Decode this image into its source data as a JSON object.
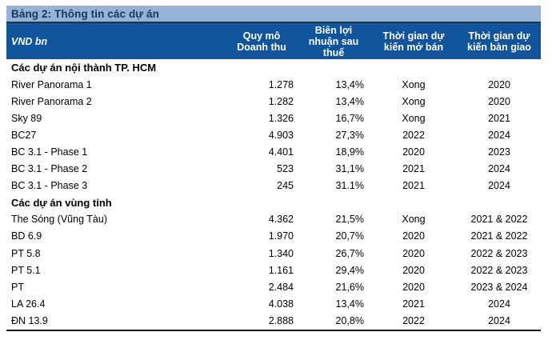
{
  "table": {
    "title": "Bảng 2: Thông tin các dự án",
    "unit_label": "VND bn",
    "columns": [
      "Quy mô\nDoanh thu",
      "Biên lợi\nnhuận sau\nthuế",
      "Thời gian dự\nkiến mở bán",
      "Thời gian dự\nkiến bàn giao"
    ],
    "sections": [
      {
        "header": "Các dự án nội thành TP. HCM",
        "rows": [
          {
            "name": "River Panorama 1",
            "revenue": "1.278",
            "margin": "13,4%",
            "open_date": "Xong",
            "handover": "2020"
          },
          {
            "name": "River Panorama 2",
            "revenue": "1.282",
            "margin": "13,4%",
            "open_date": "Xong",
            "handover": "2020"
          },
          {
            "name": "Sky 89",
            "revenue": "1.326",
            "margin": "16,7%",
            "open_date": "Xong",
            "handover": "2021"
          },
          {
            "name": "BC27",
            "revenue": "4.903",
            "margin": "27,3%",
            "open_date": "2022",
            "handover": "2024"
          },
          {
            "name": "BC 3.1 - Phase 1",
            "revenue": "4.401",
            "margin": "18,9%",
            "open_date": "2020",
            "handover": "2023"
          },
          {
            "name": "BC 3.1 - Phase 2",
            "revenue": "523",
            "margin": "31,1%",
            "open_date": "2021",
            "handover": "2024"
          },
          {
            "name": "BC 3.1 - Phase 3",
            "revenue": "245",
            "margin": "31.1%",
            "open_date": "2021",
            "handover": "2024"
          }
        ]
      },
      {
        "header": "Các dự án vùng tỉnh",
        "rows": [
          {
            "name": "The Sóng (Vũng Tàu)",
            "revenue": "4.362",
            "margin": "21,5%",
            "open_date": "Xong",
            "handover": "2021 & 2022"
          },
          {
            "name": "BD 6.9",
            "revenue": "1.970",
            "margin": "20,7%",
            "open_date": "2020",
            "handover": "2021 & 2022"
          },
          {
            "name": "PT 5.8",
            "revenue": "1.340",
            "margin": "26,7%",
            "open_date": "2020",
            "handover": "2022 & 2023"
          },
          {
            "name": "PT 5.1",
            "revenue": "1.161",
            "margin": "29,4%",
            "open_date": "2020",
            "handover": "2022 & 2023"
          },
          {
            "name": "PT",
            "revenue": "2.484",
            "margin": "21,6%",
            "open_date": "2020",
            "handover": "2023 & 2024"
          },
          {
            "name": "LA 26.4",
            "revenue": "4.038",
            "margin": "13,4%",
            "open_date": "2021",
            "handover": "2024"
          },
          {
            "name": "ĐN 13.9",
            "revenue": "2.888",
            "margin": "20,8%",
            "open_date": "2022",
            "handover": "2024"
          }
        ]
      }
    ],
    "colors": {
      "title_bar_bg": "#95B3D7",
      "title_text": "#17365D",
      "header_bg": "#0F549D",
      "header_text": "#FFFFFF",
      "divider_navy": "#17365D",
      "bottom_rule": "#1A1A1A"
    }
  }
}
